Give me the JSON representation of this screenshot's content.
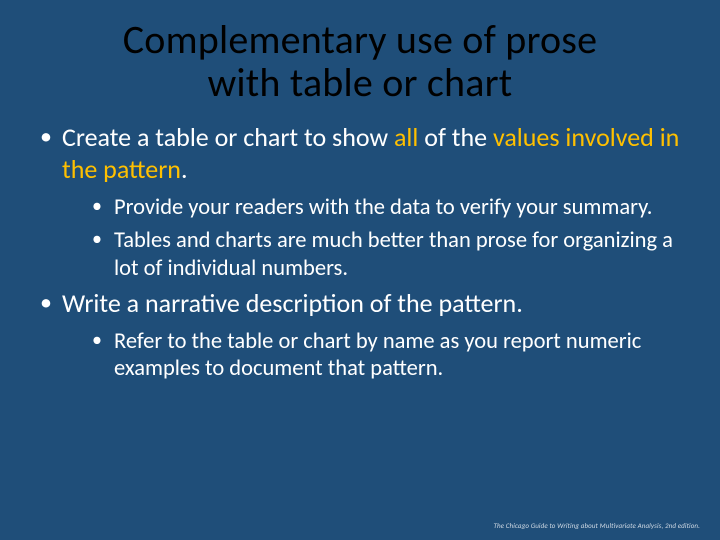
{
  "slide": {
    "background_color": "#1f4e79",
    "title_color": "#000000",
    "body_text_color": "#ffffff",
    "highlight_color": "#ffc000",
    "title_fontsize": 40,
    "lvl1_fontsize": 26,
    "lvl2_fontsize": 22.5,
    "title_line1": "Complementary use of prose",
    "title_line2": "with table or chart",
    "b1_pre": "Create a table or chart to show ",
    "b1_hl1": "all",
    "b1_mid": " of the ",
    "b1_hl2": "values involved in the pattern",
    "b1_post": ".",
    "b1_sub1": "Provide your readers with the data to verify your summary.",
    "b1_sub2": "Tables and charts are much better than prose for organizing a lot of individual numbers.",
    "b2": "Write a narrative description of the pattern.",
    "b2_sub1": "Refer to the table or chart by name as you report numeric examples to document that pattern.",
    "footer": "The Chicago Guide to Writing about Multivariate Analysis, 2nd edition."
  }
}
